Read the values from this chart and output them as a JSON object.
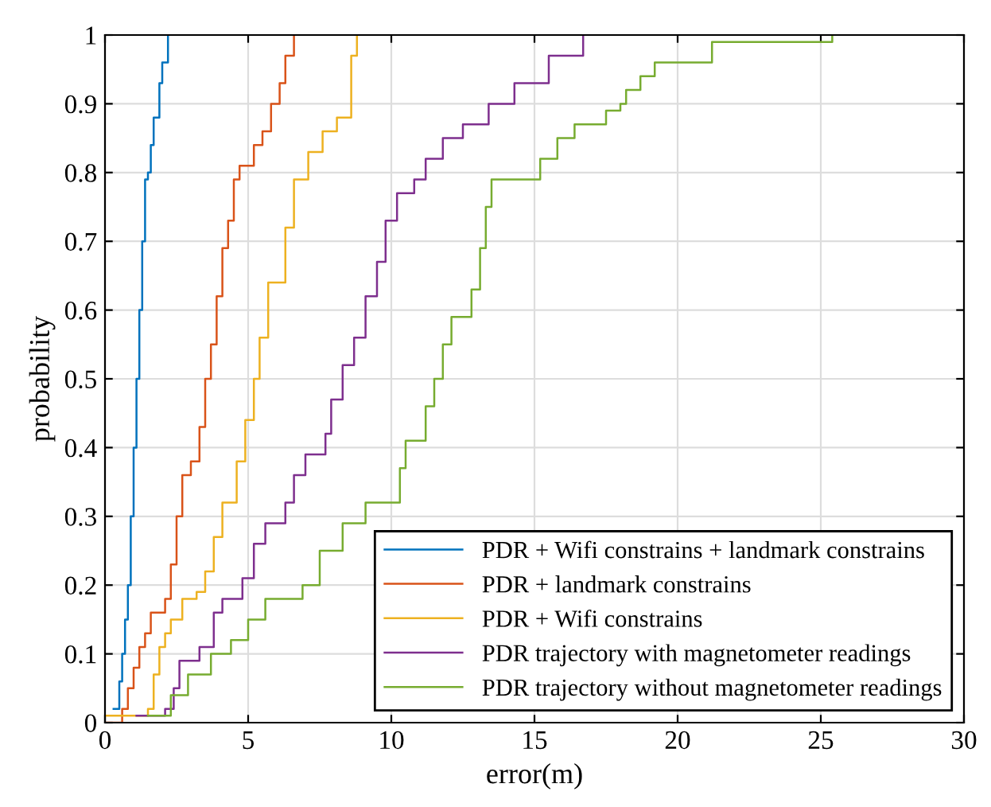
{
  "chart_data": {
    "type": "step",
    "xlabel": "error(m)",
    "ylabel": "probability",
    "xlim": [
      0,
      30
    ],
    "ylim": [
      0,
      1
    ],
    "xticks": [
      0,
      5,
      10,
      15,
      20,
      25,
      30
    ],
    "yticks": [
      0,
      0.1,
      0.2,
      0.3,
      0.4,
      0.5,
      0.6,
      0.7,
      0.8,
      0.9,
      1
    ],
    "grid": true,
    "legend": "bottom right",
    "line_style": "solid",
    "marker": "none",
    "series": [
      {
        "name": "PDR + Wifi constrains + landmark constrains",
        "color": "#0072bd",
        "x": [
          0.3,
          0.5,
          0.6,
          0.7,
          0.8,
          0.9,
          1.0,
          1.1,
          1.2,
          1.3,
          1.4,
          1.5,
          1.6,
          1.7,
          1.9,
          2.0,
          2.2
        ],
        "values": [
          0.02,
          0.06,
          0.1,
          0.15,
          0.2,
          0.3,
          0.4,
          0.5,
          0.6,
          0.7,
          0.79,
          0.8,
          0.84,
          0.88,
          0.93,
          0.96,
          1.0
        ]
      },
      {
        "name": "PDR + landmark constrains",
        "color": "#d95319",
        "x": [
          0,
          0.6,
          0.8,
          1.0,
          1.2,
          1.4,
          1.6,
          2.1,
          2.3,
          2.5,
          2.7,
          3.0,
          3.3,
          3.5,
          3.7,
          3.9,
          4.1,
          4.3,
          4.5,
          4.7,
          5.2,
          5.5,
          5.8,
          6.1,
          6.3,
          6.6
        ],
        "values": [
          0,
          0.02,
          0.05,
          0.08,
          0.11,
          0.13,
          0.16,
          0.18,
          0.23,
          0.3,
          0.36,
          0.38,
          0.43,
          0.5,
          0.55,
          0.62,
          0.69,
          0.73,
          0.79,
          0.81,
          0.84,
          0.86,
          0.9,
          0.93,
          0.97,
          1.0
        ]
      },
      {
        "name": "PDR + Wifi constrains",
        "color": "#edb120",
        "x": [
          0,
          1.5,
          1.7,
          1.9,
          2.1,
          2.3,
          2.7,
          3.2,
          3.5,
          3.8,
          4.1,
          4.6,
          4.9,
          5.2,
          5.4,
          5.7,
          6.3,
          6.6,
          7.1,
          7.6,
          8.1,
          8.6,
          8.8
        ],
        "values": [
          0.01,
          0.02,
          0.07,
          0.11,
          0.13,
          0.15,
          0.18,
          0.19,
          0.22,
          0.27,
          0.32,
          0.38,
          0.44,
          0.5,
          0.56,
          0.64,
          0.72,
          0.79,
          0.83,
          0.86,
          0.88,
          0.97,
          1.0
        ]
      },
      {
        "name": "PDR trajectory with magnetometer readings",
        "color": "#7e2f8e",
        "x": [
          1.1,
          2.1,
          2.4,
          2.6,
          3.3,
          3.8,
          4.1,
          4.8,
          5.2,
          5.6,
          6.3,
          6.6,
          7.0,
          7.7,
          7.9,
          8.3,
          8.7,
          9.1,
          9.5,
          9.8,
          10.2,
          10.8,
          11.2,
          11.8,
          12.5,
          13.4,
          14.3,
          15.5,
          16.7
        ],
        "values": [
          0.01,
          0.02,
          0.05,
          0.09,
          0.11,
          0.16,
          0.18,
          0.21,
          0.26,
          0.29,
          0.32,
          0.36,
          0.39,
          0.42,
          0.47,
          0.52,
          0.56,
          0.62,
          0.67,
          0.73,
          0.77,
          0.79,
          0.82,
          0.85,
          0.87,
          0.9,
          0.93,
          0.97,
          1.0
        ]
      },
      {
        "name": "PDR trajectory without magnetometer readings",
        "color": "#77ac30",
        "x": [
          1.5,
          2.3,
          2.9,
          3.7,
          4.4,
          5.0,
          5.6,
          6.9,
          7.5,
          8.3,
          9.1,
          10.3,
          10.5,
          11.2,
          11.5,
          11.8,
          12.1,
          12.8,
          13.1,
          13.3,
          13.5,
          15.2,
          15.8,
          16.4,
          17.5,
          18.0,
          18.2,
          18.7,
          19.2,
          21.2,
          25.4
        ],
        "values": [
          0.01,
          0.04,
          0.07,
          0.1,
          0.12,
          0.15,
          0.18,
          0.2,
          0.25,
          0.29,
          0.32,
          0.37,
          0.41,
          0.46,
          0.5,
          0.55,
          0.59,
          0.63,
          0.69,
          0.75,
          0.79,
          0.82,
          0.85,
          0.87,
          0.89,
          0.9,
          0.92,
          0.94,
          0.96,
          0.99,
          1.0
        ]
      }
    ]
  }
}
